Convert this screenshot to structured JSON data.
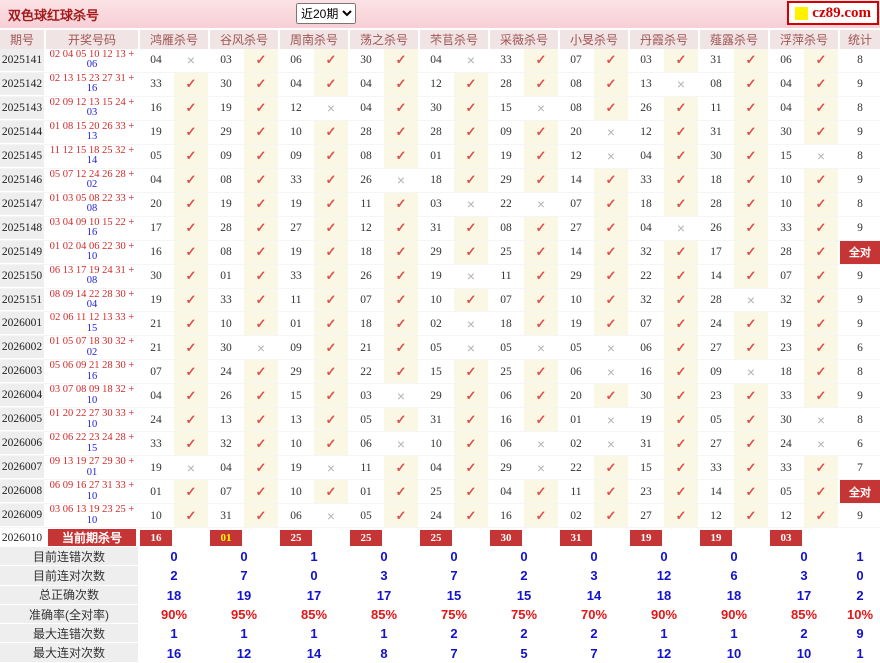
{
  "header": {
    "title": "双色球红球杀号",
    "range_selected": "近20期",
    "logo_text": "cz89.com"
  },
  "colors": {
    "badge_red": "#C63535",
    "check": "#D9534F",
    "cross": "#B3B3B3",
    "red_ball": "#D02A2A",
    "blue_ball": "#2020DD",
    "value_blue": "#1212CC",
    "value_red": "#E51515"
  },
  "glyphs": {
    "correct": "✓",
    "wrong": "×"
  },
  "all_correct_label": "全对",
  "columns": {
    "period": "期号",
    "draw": "开奖号码",
    "experts": [
      "鸿雁杀号",
      "谷风杀号",
      "周南杀号",
      "荡之杀号",
      "芣苢杀号",
      "采薇杀号",
      "小旻杀号",
      "丹霞杀号",
      "薤露杀号",
      "浮萍杀号"
    ],
    "stat": "统计"
  },
  "rows": [
    {
      "period": "2025141",
      "red": "02 04 05 10 12 13",
      "blue": "06",
      "kills": [
        "04",
        "03",
        "06",
        "30",
        "04",
        "33",
        "07",
        "03",
        "31",
        "06"
      ],
      "marks": [
        0,
        1,
        1,
        1,
        0,
        1,
        1,
        1,
        1,
        1
      ],
      "stat": "8"
    },
    {
      "period": "2025142",
      "red": "02 13 15 23 27 31",
      "blue": "16",
      "kills": [
        "33",
        "30",
        "04",
        "04",
        "12",
        "28",
        "08",
        "13",
        "08",
        "04"
      ],
      "marks": [
        1,
        1,
        1,
        1,
        1,
        1,
        1,
        0,
        1,
        1
      ],
      "stat": "9"
    },
    {
      "period": "2025143",
      "red": "02 09 12 13 15 24",
      "blue": "03",
      "kills": [
        "16",
        "19",
        "12",
        "04",
        "30",
        "15",
        "08",
        "26",
        "11",
        "04"
      ],
      "marks": [
        1,
        1,
        0,
        1,
        1,
        0,
        1,
        1,
        1,
        1
      ],
      "stat": "8"
    },
    {
      "period": "2025144",
      "red": "01 08 15 20 26 33",
      "blue": "13",
      "kills": [
        "19",
        "29",
        "10",
        "28",
        "28",
        "09",
        "20",
        "12",
        "31",
        "30"
      ],
      "marks": [
        1,
        1,
        1,
        1,
        1,
        1,
        0,
        1,
        1,
        1
      ],
      "stat": "9"
    },
    {
      "period": "2025145",
      "red": "11 12 15 18 25 32",
      "blue": "14",
      "kills": [
        "05",
        "09",
        "09",
        "08",
        "01",
        "19",
        "12",
        "04",
        "30",
        "15"
      ],
      "marks": [
        1,
        1,
        1,
        1,
        1,
        1,
        0,
        1,
        1,
        0
      ],
      "stat": "8"
    },
    {
      "period": "2025146",
      "red": "05 07 12 24 26 28",
      "blue": "02",
      "kills": [
        "04",
        "08",
        "33",
        "26",
        "18",
        "29",
        "14",
        "33",
        "18",
        "10"
      ],
      "marks": [
        1,
        1,
        1,
        0,
        1,
        1,
        1,
        1,
        1,
        1
      ],
      "stat": "9"
    },
    {
      "period": "2025147",
      "red": "01 03 05 08 22 33",
      "blue": "08",
      "kills": [
        "20",
        "19",
        "19",
        "11",
        "03",
        "22",
        "07",
        "18",
        "28",
        "10"
      ],
      "marks": [
        1,
        1,
        1,
        1,
        0,
        0,
        1,
        1,
        1,
        1
      ],
      "stat": "8"
    },
    {
      "period": "2025148",
      "red": "03 04 09 10 15 22",
      "blue": "16",
      "kills": [
        "17",
        "28",
        "27",
        "12",
        "31",
        "08",
        "27",
        "04",
        "26",
        "33"
      ],
      "marks": [
        1,
        1,
        1,
        1,
        1,
        1,
        1,
        0,
        1,
        1
      ],
      "stat": "9"
    },
    {
      "period": "2025149",
      "red": "01 02 04 06 22 30",
      "blue": "10",
      "kills": [
        "16",
        "08",
        "19",
        "18",
        "29",
        "25",
        "14",
        "32",
        "17",
        "28"
      ],
      "marks": [
        1,
        1,
        1,
        1,
        1,
        1,
        1,
        1,
        1,
        1
      ],
      "stat": "全对"
    },
    {
      "period": "2025150",
      "red": "06 13 17 19 24 31",
      "blue": "08",
      "kills": [
        "30",
        "01",
        "33",
        "26",
        "19",
        "11",
        "29",
        "22",
        "14",
        "07"
      ],
      "marks": [
        1,
        1,
        1,
        1,
        0,
        1,
        1,
        1,
        1,
        1
      ],
      "stat": "9"
    },
    {
      "period": "2025151",
      "red": "08 09 14 22 28 30",
      "blue": "04",
      "kills": [
        "19",
        "33",
        "11",
        "07",
        "10",
        "07",
        "10",
        "32",
        "28",
        "32"
      ],
      "marks": [
        1,
        1,
        1,
        1,
        1,
        1,
        1,
        1,
        0,
        1
      ],
      "stat": "9"
    },
    {
      "period": "2026001",
      "red": "02 06 11 12 13 33",
      "blue": "15",
      "kills": [
        "21",
        "10",
        "01",
        "18",
        "02",
        "18",
        "19",
        "07",
        "24",
        "19"
      ],
      "marks": [
        1,
        1,
        1,
        1,
        0,
        1,
        1,
        1,
        1,
        1
      ],
      "stat": "9"
    },
    {
      "period": "2026002",
      "red": "01 05 07 18 30 32",
      "blue": "02",
      "kills": [
        "21",
        "30",
        "09",
        "21",
        "05",
        "05",
        "05",
        "06",
        "27",
        "23"
      ],
      "marks": [
        1,
        0,
        1,
        1,
        0,
        0,
        0,
        1,
        1,
        1
      ],
      "stat": "6"
    },
    {
      "period": "2026003",
      "red": "05 06 09 21 28 30",
      "blue": "16",
      "kills": [
        "07",
        "24",
        "29",
        "22",
        "15",
        "25",
        "06",
        "16",
        "09",
        "18"
      ],
      "marks": [
        1,
        1,
        1,
        1,
        1,
        1,
        0,
        1,
        0,
        1
      ],
      "stat": "8"
    },
    {
      "period": "2026004",
      "red": "03 07 08 09 18 32",
      "blue": "10",
      "kills": [
        "04",
        "26",
        "15",
        "03",
        "29",
        "06",
        "20",
        "30",
        "23",
        "33"
      ],
      "marks": [
        1,
        1,
        1,
        0,
        1,
        1,
        1,
        1,
        1,
        1
      ],
      "stat": "9"
    },
    {
      "period": "2026005",
      "red": "01 20 22 27 30 33",
      "blue": "10",
      "kills": [
        "24",
        "13",
        "13",
        "05",
        "31",
        "16",
        "01",
        "19",
        "05",
        "30"
      ],
      "marks": [
        1,
        1,
        1,
        1,
        1,
        1,
        0,
        1,
        1,
        0
      ],
      "stat": "8"
    },
    {
      "period": "2026006",
      "red": "02 06 22 23 24 28",
      "blue": "15",
      "kills": [
        "33",
        "32",
        "10",
        "06",
        "10",
        "06",
        "02",
        "31",
        "27",
        "24"
      ],
      "marks": [
        1,
        1,
        1,
        0,
        1,
        0,
        0,
        1,
        1,
        0
      ],
      "stat": "6"
    },
    {
      "period": "2026007",
      "red": "09 13 19 27 29 30",
      "blue": "01",
      "kills": [
        "19",
        "04",
        "19",
        "11",
        "04",
        "29",
        "22",
        "15",
        "33",
        "33"
      ],
      "marks": [
        0,
        1,
        0,
        1,
        1,
        0,
        1,
        1,
        1,
        1
      ],
      "stat": "7"
    },
    {
      "period": "2026008",
      "red": "06 09 16 27 31 33",
      "blue": "10",
      "kills": [
        "01",
        "07",
        "10",
        "01",
        "25",
        "04",
        "11",
        "23",
        "14",
        "05"
      ],
      "marks": [
        1,
        1,
        1,
        1,
        1,
        1,
        1,
        1,
        1,
        1
      ],
      "stat": "全对"
    },
    {
      "period": "2026009",
      "red": "03 06 13 19 23 25",
      "blue": "10",
      "kills": [
        "10",
        "31",
        "06",
        "05",
        "24",
        "16",
        "02",
        "27",
        "12",
        "12"
      ],
      "marks": [
        1,
        1,
        0,
        1,
        1,
        1,
        1,
        1,
        1,
        1
      ],
      "stat": "9"
    }
  ],
  "current_row": {
    "period": "2026010",
    "label": "当前期杀号",
    "kills": [
      "16",
      "01",
      "25",
      "25",
      "25",
      "30",
      "31",
      "19",
      "19",
      "03"
    ],
    "kill_text_colors": [
      "#FFFFFF",
      "#FFFF00",
      "#FFFFFF",
      "#FFFFFF",
      "#FFFFFF",
      "#FFFFFF",
      "#FFFFFF",
      "#FFFFFF",
      "#FFFFFF",
      "#FFFFFF"
    ]
  },
  "footer_rows": [
    {
      "label": "目前连错次数",
      "values": [
        "0",
        "0",
        "1",
        "0",
        "0",
        "0",
        "0",
        "0",
        "0",
        "0"
      ],
      "total": "1",
      "color": "blue"
    },
    {
      "label": "目前连对次数",
      "values": [
        "2",
        "7",
        "0",
        "3",
        "7",
        "2",
        "3",
        "12",
        "6",
        "3"
      ],
      "total": "0",
      "color": "blue"
    },
    {
      "label": "总正确次数",
      "values": [
        "18",
        "19",
        "17",
        "17",
        "15",
        "15",
        "14",
        "18",
        "18",
        "17"
      ],
      "total": "2",
      "color": "blue"
    },
    {
      "label": "准确率(全对率)",
      "values": [
        "90%",
        "95%",
        "85%",
        "85%",
        "75%",
        "75%",
        "70%",
        "90%",
        "90%",
        "85%"
      ],
      "total": "10%",
      "color": "redv"
    },
    {
      "label": "最大连错次数",
      "values": [
        "1",
        "1",
        "1",
        "1",
        "2",
        "2",
        "2",
        "1",
        "1",
        "2"
      ],
      "total": "9",
      "color": "blue"
    },
    {
      "label": "最大连对次数",
      "values": [
        "16",
        "12",
        "14",
        "8",
        "7",
        "5",
        "7",
        "12",
        "10",
        "10"
      ],
      "total": "1",
      "color": "blue"
    }
  ]
}
